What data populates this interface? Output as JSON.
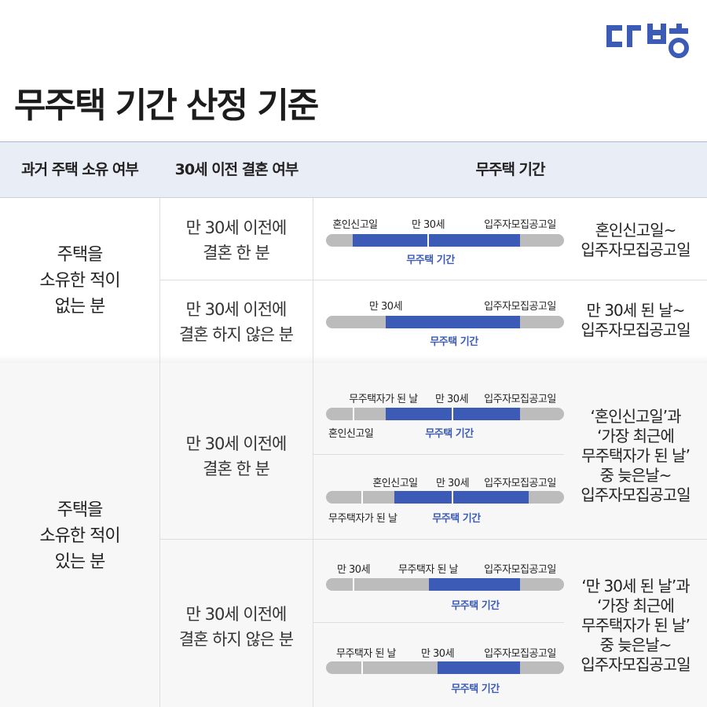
{
  "brand": {
    "logo_text": "다방",
    "color": "#3c5bb7"
  },
  "title": "무주택 기간 산정 기준",
  "headers": {
    "col1": "과거 주택 소유 여부",
    "col2": "30세 이전 결혼 여부",
    "col3": "무주택 기간"
  },
  "sections": [
    {
      "owner_lines": [
        "주택을",
        "소유한 적이",
        "없는 분"
      ],
      "groups": [
        {
          "marriage_lines": [
            "만 30세 이전에",
            "결혼 한 분"
          ],
          "rows": [
            {
              "labels": [
                "혼인신고일",
                "만 30세",
                "입주자모집공고일"
              ],
              "period_label": "무주택 기간"
            }
          ],
          "result_lines": [
            "혼인신고일~",
            "입주자모집공고일"
          ]
        },
        {
          "marriage_lines": [
            "만 30세 이전에",
            "결혼 하지 않은 분"
          ],
          "rows": [
            {
              "labels": [
                "만 30세",
                "입주자모집공고일"
              ],
              "period_label": "무주택 기간"
            }
          ],
          "result_lines": [
            "만 30세 된 날~",
            "입주자모집공고일"
          ]
        }
      ]
    },
    {
      "owner_lines": [
        "주택을",
        "소유한 적이",
        "있는 분"
      ],
      "groups": [
        {
          "marriage_lines": [
            "만 30세 이전에",
            "결혼 한 분"
          ],
          "rows": [
            {
              "labels": [
                "무주택자가 된 날",
                "만 30세",
                "입주자모집공고일"
              ],
              "below_label": "혼인신고일",
              "period_label": "무주택 기간"
            },
            {
              "labels": [
                "혼인신고일",
                "만 30세",
                "입주자모집공고일"
              ],
              "below_label": "무주택자가 된 날",
              "period_label": "무주택 기간"
            }
          ],
          "result_lines": [
            "‘혼인신고일’과",
            "‘가장 최근에",
            "무주택자가 된 날’",
            "중 늦은날~",
            "입주자모집공고일"
          ]
        },
        {
          "marriage_lines": [
            "만 30세 이전에",
            "결혼 하지 않은 분"
          ],
          "rows": [
            {
              "labels": [
                "만 30세",
                "무주택자 된 날",
                "입주자모집공고일"
              ],
              "period_label": "무주택 기간"
            },
            {
              "labels": [
                "무주택자 된 날",
                "만 30세",
                "입주자모집공고일"
              ],
              "period_label": "무주택 기간"
            }
          ],
          "result_lines": [
            "‘만 30세 된 날’과",
            "‘가장 최근에",
            "무주택자가 된 날’",
            "중 늦은날~",
            "입주자모집공고일"
          ]
        }
      ]
    }
  ],
  "colors": {
    "period_fill": "#3c5bb7",
    "bar_base": "#bcbcbc",
    "header_bg": "#e9edf5"
  }
}
